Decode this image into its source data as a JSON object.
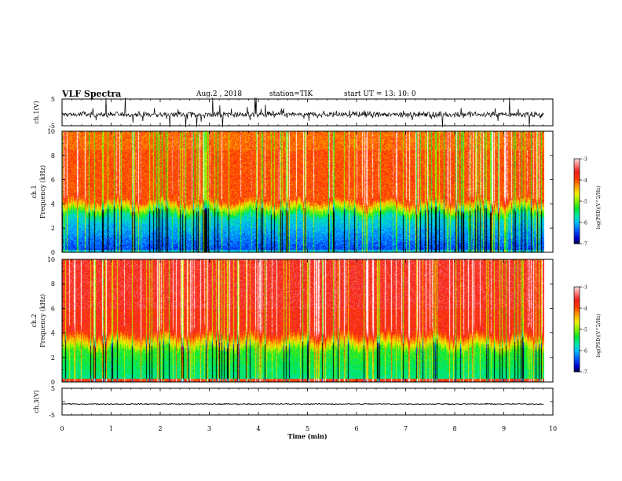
{
  "header": {
    "title": "VLF Spectra",
    "date": "Aug.2 , 2018",
    "station": "station=TIK",
    "start_ut": "start UT = 13: 10: 0"
  },
  "colors": {
    "scale": [
      "#000000",
      "#0000c8",
      "#0050ff",
      "#00b4ff",
      "#00e6b4",
      "#00e632",
      "#82f000",
      "#f0f000",
      "#ffa000",
      "#ff3c00",
      "#f01e1e",
      "#ff8c8c",
      "#ffffff"
    ]
  },
  "chart_data": [
    {
      "type": "line",
      "panel": "top-waveform",
      "ylabel": "ch.1(V)",
      "ylim": [
        -5,
        5
      ],
      "y_ticks": [
        "5",
        "-5"
      ],
      "x_ticks": [
        "0",
        "1",
        "2",
        "3",
        "4",
        "5",
        "6",
        "7",
        "8",
        "9",
        "10"
      ],
      "xlim": [
        0,
        10
      ],
      "series": [
        {
          "description_only": false,
          "baseline": -0.8,
          "noise_amplitude": 2.5,
          "end_x": 9.82
        }
      ]
    },
    {
      "type": "heatmap",
      "panel": "spectrogram-ch1",
      "ylabel": "ch.1\nFrequency (kHz)",
      "ylim": [
        0,
        10
      ],
      "y_ticks": [
        "0",
        "2",
        "4",
        "6",
        "8",
        "10"
      ],
      "xlim": [
        0,
        10
      ],
      "data_end_x": 9.82,
      "colorbar": {
        "label": "log(PSD)(V^2/Hz)",
        "ticks": [
          "-3",
          "-4",
          "-5",
          "-6",
          "-7"
        ],
        "range": [
          -7,
          -3
        ]
      }
    },
    {
      "type": "heatmap",
      "panel": "spectrogram-ch2",
      "ylabel": "ch.2\nFrequency (kHz)",
      "ylim": [
        0,
        10
      ],
      "y_ticks": [
        "0",
        "2",
        "4",
        "6",
        "8",
        "10"
      ],
      "xlim": [
        0,
        10
      ],
      "data_end_x": 9.82,
      "colorbar": {
        "label": "log(PSD)(V^2/Hz)",
        "ticks": [
          "-3",
          "-4",
          "-5",
          "-6",
          "-7"
        ],
        "range": [
          -7,
          -3
        ]
      }
    },
    {
      "type": "line",
      "panel": "bottom-waveform",
      "ylabel": "ch.3(V)",
      "ylim": [
        -5,
        5
      ],
      "y_ticks": [
        "5",
        "0",
        "-5"
      ],
      "xlim": [
        0,
        10
      ],
      "x_ticks": [
        "0",
        "1",
        "2",
        "3",
        "4",
        "5",
        "6",
        "7",
        "8",
        "9",
        "10"
      ],
      "xlabel": "Time (min)",
      "series": [
        {
          "baseline": 0.3,
          "noise_amplitude": 0.1,
          "end_x": 9.82
        }
      ]
    }
  ]
}
